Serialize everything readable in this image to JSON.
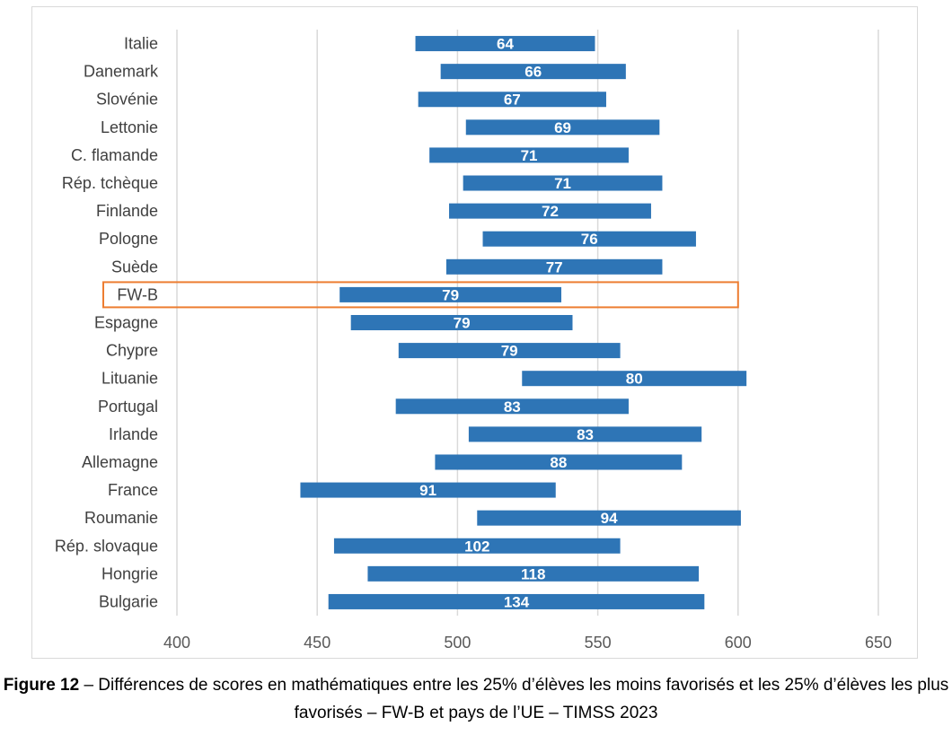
{
  "chart_data": {
    "type": "bar",
    "subtype": "floating-range",
    "categories": [
      "Italie",
      "Danemark",
      "Slovénie",
      "Lettonie",
      "C. flamande",
      "Rép. tchèque",
      "Finlande",
      "Pologne",
      "Suède",
      "FW-B",
      "Espagne",
      "Chypre",
      "Lituanie",
      "Portugal",
      "Irlande",
      "Allemagne",
      "France",
      "Roumanie",
      "Rép. slovaque",
      "Hongrie",
      "Bulgarie"
    ],
    "ranges": [
      [
        485,
        549
      ],
      [
        494,
        560
      ],
      [
        486,
        553
      ],
      [
        503,
        572
      ],
      [
        490,
        561
      ],
      [
        502,
        573
      ],
      [
        497,
        569
      ],
      [
        509,
        585
      ],
      [
        496,
        573
      ],
      [
        458,
        537
      ],
      [
        462,
        541
      ],
      [
        479,
        558
      ],
      [
        523,
        603
      ],
      [
        478,
        561
      ],
      [
        504,
        587
      ],
      [
        492,
        580
      ],
      [
        444,
        535
      ],
      [
        507,
        601
      ],
      [
        456,
        558
      ],
      [
        468,
        586
      ],
      [
        454,
        588
      ]
    ],
    "labels": [
      "64",
      "66",
      "67",
      "69",
      "71",
      "71",
      "72",
      "76",
      "77",
      "79",
      "79",
      "79",
      "80",
      "83",
      "83",
      "88",
      "91",
      "94",
      "102",
      "118",
      "134"
    ],
    "highlight": "FW-B",
    "highlight_color": "#ed7d31",
    "bar_color": "#2e75b6",
    "grid_color": "#d9d9d9",
    "xlim": [
      400,
      650
    ],
    "xticks": [
      "400",
      "450",
      "500",
      "550",
      "600",
      "650"
    ],
    "grid": true,
    "title": "",
    "xlabel": "",
    "ylabel": ""
  },
  "caption": {
    "prefix": "Figure 12",
    "text": " – Différences de scores en mathématiques entre les 25% d’élèves les moins favorisés et les 25% d’élèves les plus favorisés – FW-B et pays de l’UE – TIMSS 2023"
  }
}
